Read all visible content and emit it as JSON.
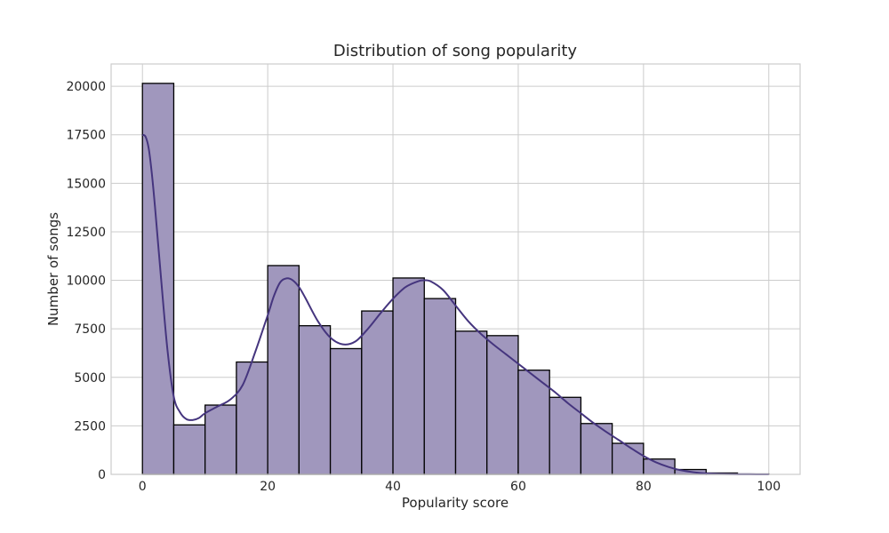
{
  "chart_data": {
    "type": "bar",
    "title": "Distribution of song popularity",
    "xlabel": "Popularity score",
    "ylabel": "Number of songs",
    "xlim": [
      -5,
      105
    ],
    "ylim": [
      0,
      21150
    ],
    "xticks": [
      0,
      20,
      40,
      60,
      80,
      100
    ],
    "yticks": [
      0,
      2500,
      5000,
      7500,
      10000,
      12500,
      15000,
      17500,
      20000
    ],
    "grid": true,
    "bins": {
      "edges": [
        0,
        5,
        10,
        15,
        20,
        25,
        30,
        35,
        40,
        45,
        50,
        55,
        60,
        65,
        70,
        75,
        80,
        85,
        90,
        95,
        100
      ],
      "counts": [
        20150,
        2550,
        3570,
        5790,
        10760,
        7660,
        6480,
        8420,
        10120,
        9060,
        7380,
        7150,
        5370,
        3970,
        2620,
        1600,
        790,
        250,
        70,
        20
      ]
    },
    "kde": {
      "x": [
        0,
        0.5,
        1,
        1.5,
        2,
        3,
        4,
        5,
        6,
        7,
        8,
        9,
        10,
        12,
        14,
        16,
        18,
        20,
        21,
        22,
        23,
        24,
        25,
        26,
        28,
        30,
        32,
        34,
        36,
        38,
        40,
        42,
        44,
        45,
        46,
        48,
        50,
        52,
        54,
        56,
        58,
        60,
        62,
        64,
        66,
        68,
        70,
        72,
        74,
        76,
        78,
        80,
        82,
        84,
        86,
        88,
        90,
        92,
        94,
        96,
        98,
        100
      ],
      "y": [
        17500,
        17400,
        16800,
        15500,
        13800,
        10000,
        6400,
        4000,
        3200,
        2850,
        2800,
        2900,
        3150,
        3500,
        3850,
        4600,
        6300,
        8200,
        9200,
        9900,
        10100,
        10000,
        9650,
        9100,
        7900,
        7050,
        6700,
        6850,
        7500,
        8300,
        9050,
        9650,
        9950,
        10000,
        9950,
        9500,
        8700,
        7900,
        7250,
        6700,
        6200,
        5700,
        5200,
        4700,
        4200,
        3650,
        3150,
        2650,
        2200,
        1780,
        1350,
        950,
        620,
        380,
        210,
        110,
        50,
        25,
        10,
        5,
        2,
        0
      ]
    },
    "colors": {
      "bar_fill": "#a097bd",
      "bar_edge": "#000000",
      "kde_line": "#45357e",
      "grid": "#cccccc",
      "frame": "#cccccc"
    }
  }
}
